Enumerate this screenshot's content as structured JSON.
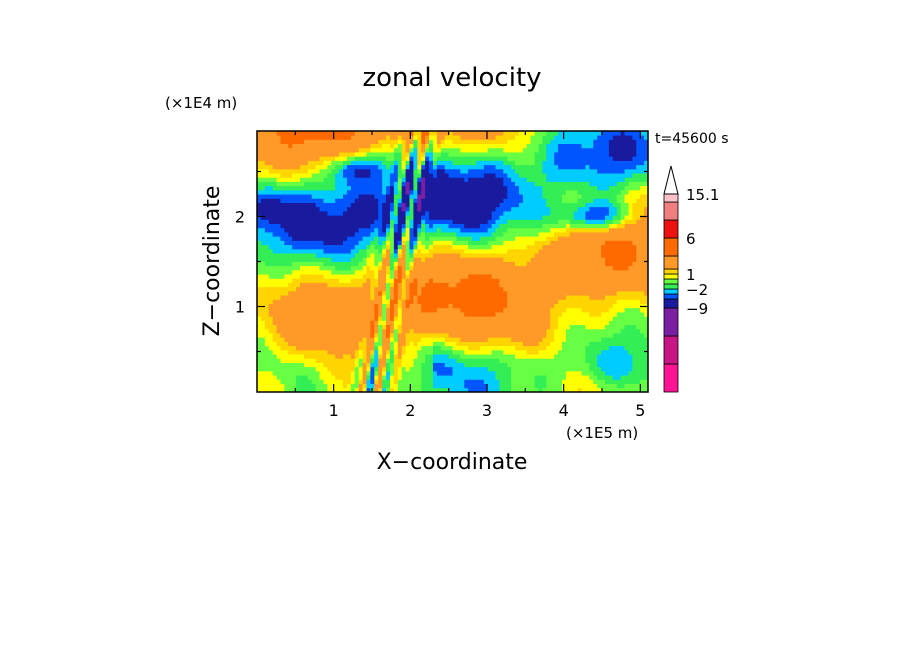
{
  "chart_data": {
    "type": "heatmap",
    "title": "zonal velocity",
    "xlabel": "X−coordinate",
    "ylabel": "Z−coordinate",
    "x_unit": "(×1E5 m)",
    "y_unit": "(×1E4 m)",
    "time_label": "t=45600 s",
    "xlim": [
      0,
      5.1
    ],
    "ylim": [
      0.05,
      2.95
    ],
    "xticks": [
      1,
      2,
      3,
      4,
      5
    ],
    "yticks": [
      1,
      2
    ],
    "x_tick_labels": [
      "1",
      "2",
      "3",
      "4",
      "5"
    ],
    "y_tick_labels": [
      "1",
      "2"
    ],
    "colorbar": {
      "levels": [
        -15,
        -12,
        -9,
        -6,
        -3,
        -2,
        -1,
        0,
        1,
        2,
        3,
        6,
        9,
        12,
        15.1
      ],
      "colors": [
        "#ff1493",
        "#c71585",
        "#7b1fa2",
        "#1a1a9e",
        "#0055ff",
        "#00ccff",
        "#33ee55",
        "#66ff44",
        "#ffff00",
        "#ffd500",
        "#ff9a28",
        "#ff6a00",
        "#ee1111",
        "#f08080",
        "#ffc0c8"
      ],
      "extend_max": true,
      "labels": [
        {
          "value": 15.1,
          "text": "15.1"
        },
        {
          "value": 6,
          "text": "6"
        },
        {
          "value": 1,
          "text": "1"
        },
        {
          "value": -2,
          "text": "−2"
        },
        {
          "value": -9,
          "text": "−9"
        }
      ]
    }
  }
}
